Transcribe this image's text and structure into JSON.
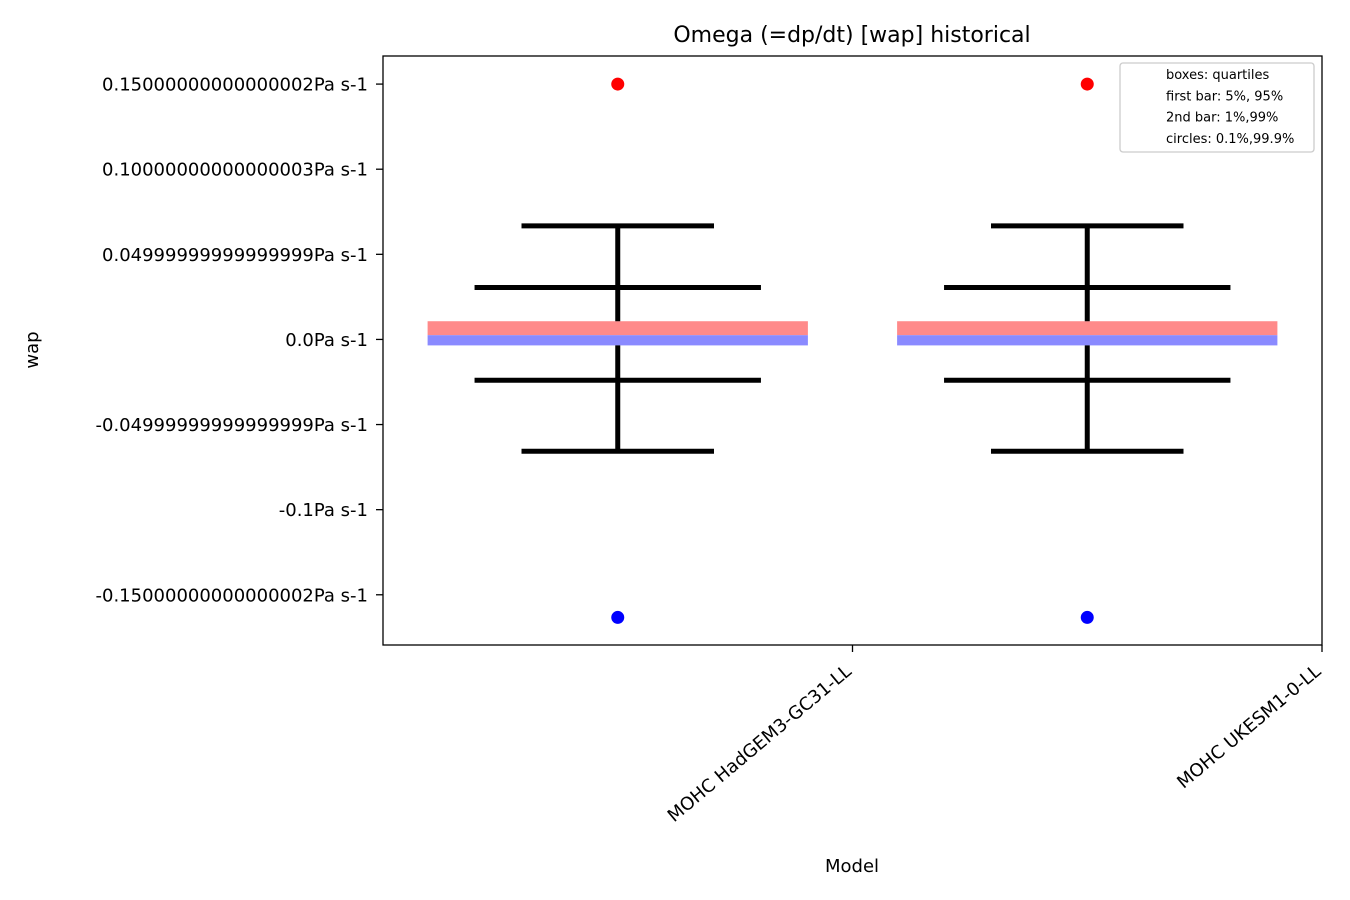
{
  "chart_data": {
    "type": "box",
    "title": "Omega (=dp/dt) [wap] historical",
    "xlabel": "Model",
    "ylabel": "wap",
    "ylim": [
      -0.1795,
      0.1665
    ],
    "yticks": [
      {
        "value": 0.15,
        "label": "0.15000000000000002Pa s-1"
      },
      {
        "value": 0.1,
        "label": "0.10000000000000003Pa s-1"
      },
      {
        "value": 0.05,
        "label": "0.04999999999999999Pa s-1"
      },
      {
        "value": 0.0,
        "label": "0.0Pa s-1"
      },
      {
        "value": -0.05,
        "label": "-0.04999999999999999Pa s-1"
      },
      {
        "value": -0.1,
        "label": "-0.1Pa s-1"
      },
      {
        "value": -0.15,
        "label": "-0.15000000000000002Pa s-1"
      }
    ],
    "categories": [
      "MOHC HadGEM3-GC31-LL",
      "MOHC UKESM1-0-LL"
    ],
    "series": [
      {
        "q1": -0.0035,
        "median": 0.0025,
        "q3": 0.0107,
        "p5": -0.024,
        "p95": 0.0305,
        "p1": -0.0657,
        "p99": 0.0667,
        "p0_1": -0.1633,
        "p99_9": 0.15
      },
      {
        "q1": -0.0035,
        "median": 0.0025,
        "q3": 0.0107,
        "p5": -0.024,
        "p95": 0.0305,
        "p1": -0.0657,
        "p99": 0.0667,
        "p0_1": -0.1633,
        "p99_9": 0.15
      }
    ],
    "colors": {
      "upper_box": "#ff8a8a",
      "lower_box": "#8a8aff",
      "high_circle": "#ff0000",
      "low_circle": "#0000ff",
      "whisker": "#000000"
    },
    "legend": {
      "position": "top-right",
      "entries": [
        "boxes: quartiles",
        "first bar: 5%, 95%",
        "2nd bar: 1%,99%",
        "circles: 0.1%,99.9%"
      ]
    }
  }
}
